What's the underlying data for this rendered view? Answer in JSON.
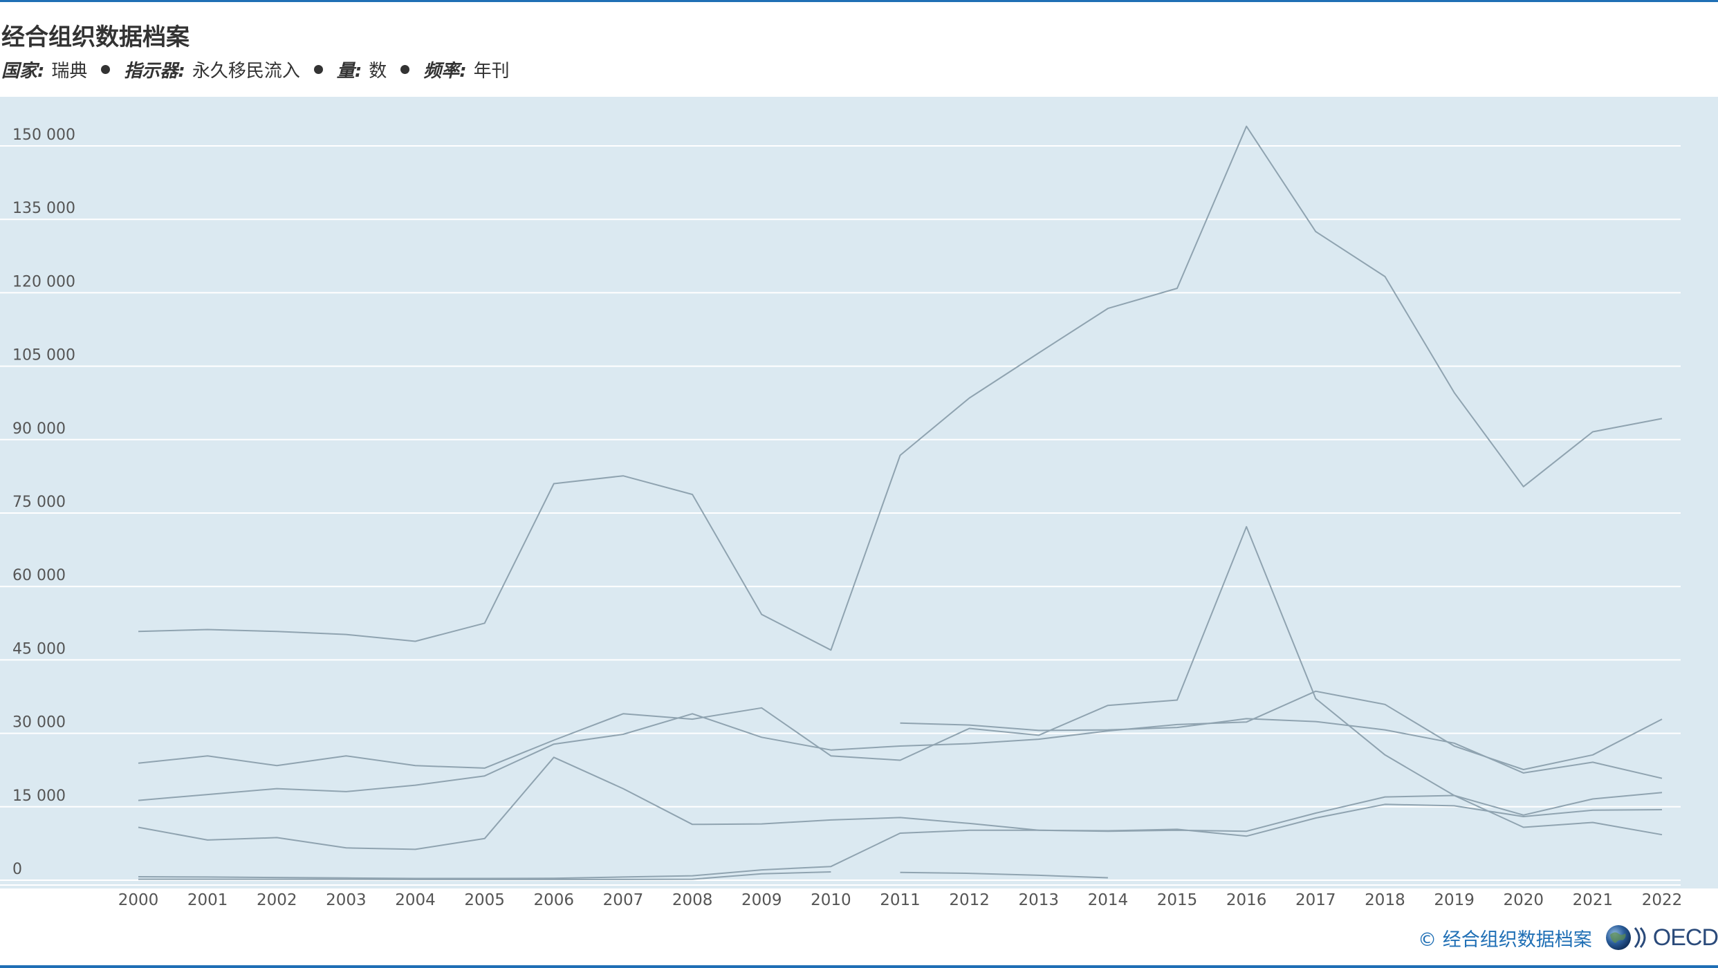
{
  "header": {
    "title": "经合组织数据档案",
    "filters": [
      {
        "label": "国家:",
        "value": "瑞典"
      },
      {
        "label": "指示器:",
        "value": "永久移民流入"
      },
      {
        "label": "量:",
        "value": "数"
      },
      {
        "label": "频率:",
        "value": "年刊"
      }
    ]
  },
  "footer": {
    "copyright": "©  经合组织数据档案",
    "logo_text": "OECD"
  },
  "colors": {
    "plot_background": "#dbe9f1",
    "line": "#8fa3b0",
    "gridline": "#ffffff",
    "brand": "#1f6fb5"
  },
  "chart_data": {
    "type": "line",
    "title": "",
    "xlabel": "",
    "ylabel": "",
    "x": [
      "2000",
      "2001",
      "2002",
      "2003",
      "2004",
      "2005",
      "2006",
      "2007",
      "2008",
      "2009",
      "2010",
      "2011",
      "2012",
      "2013",
      "2014",
      "2015",
      "2016",
      "2017",
      "2018",
      "2019",
      "2020",
      "2021",
      "2022"
    ],
    "ylim": [
      0,
      150000
    ],
    "yticks": [
      0,
      15000,
      30000,
      45000,
      60000,
      75000,
      90000,
      105000,
      120000,
      135000,
      150000
    ],
    "ytick_labels": [
      "0",
      "15 000",
      "30 000",
      "45 000",
      "60 000",
      "75 000",
      "90 000",
      "105 000",
      "120 000",
      "135 000",
      "150 000"
    ],
    "grid": true,
    "legend": "none",
    "series": [
      {
        "values": [
          50800,
          51200,
          50800,
          50200,
          48800,
          52500,
          81000,
          82600,
          78800,
          54300,
          47000,
          86800,
          98500,
          107700,
          116800,
          120900,
          154000,
          132500,
          123300,
          99600,
          80400,
          91600,
          94300
        ]
      },
      {
        "values": [
          23900,
          25400,
          23400,
          25400,
          23400,
          22900,
          28600,
          34000,
          32900,
          35200,
          25400,
          24500,
          31000,
          29600,
          35700,
          36800,
          72200,
          37100,
          25600,
          17300,
          10800,
          11800,
          9300
        ]
      },
      {
        "values": [
          16300,
          17500,
          18700,
          18100,
          19400,
          21300,
          27800,
          29800,
          34000,
          29200,
          26600,
          27400,
          27900,
          28800,
          30500,
          31800,
          32300,
          38600,
          35900,
          27400,
          22600,
          25600,
          32900
        ]
      },
      {
        "values": [
          10800,
          8200,
          8700,
          6600,
          6300,
          8500,
          25100,
          18700,
          11400,
          11500,
          12300,
          12800,
          11600,
          10200,
          10000,
          10200,
          10000,
          13700,
          17000,
          17300,
          13300,
          16600,
          17900
        ]
      },
      {
        "values": [
          700,
          650,
          550,
          450,
          350,
          350,
          400,
          650,
          900,
          2100,
          2800,
          9600,
          10200,
          10200,
          10100,
          10400,
          9000,
          12700,
          15500,
          15200,
          13000,
          14300,
          14400
        ]
      },
      {
        "values": [
          null,
          null,
          null,
          null,
          null,
          null,
          null,
          null,
          null,
          null,
          null,
          32100,
          31700,
          30600,
          30700,
          31200,
          33000,
          32400,
          30700,
          28000,
          21900,
          24100,
          20800
        ]
      },
      {
        "values": [
          200,
          200,
          200,
          200,
          150,
          150,
          150,
          150,
          200,
          1300,
          1700,
          null,
          null,
          null,
          null,
          null,
          null,
          null,
          null,
          null,
          null,
          null,
          null
        ]
      },
      {
        "values": [
          null,
          null,
          null,
          null,
          null,
          null,
          null,
          null,
          null,
          null,
          null,
          1600,
          1400,
          1000,
          500,
          null,
          null,
          null,
          null,
          null,
          null,
          null,
          null
        ]
      }
    ]
  }
}
